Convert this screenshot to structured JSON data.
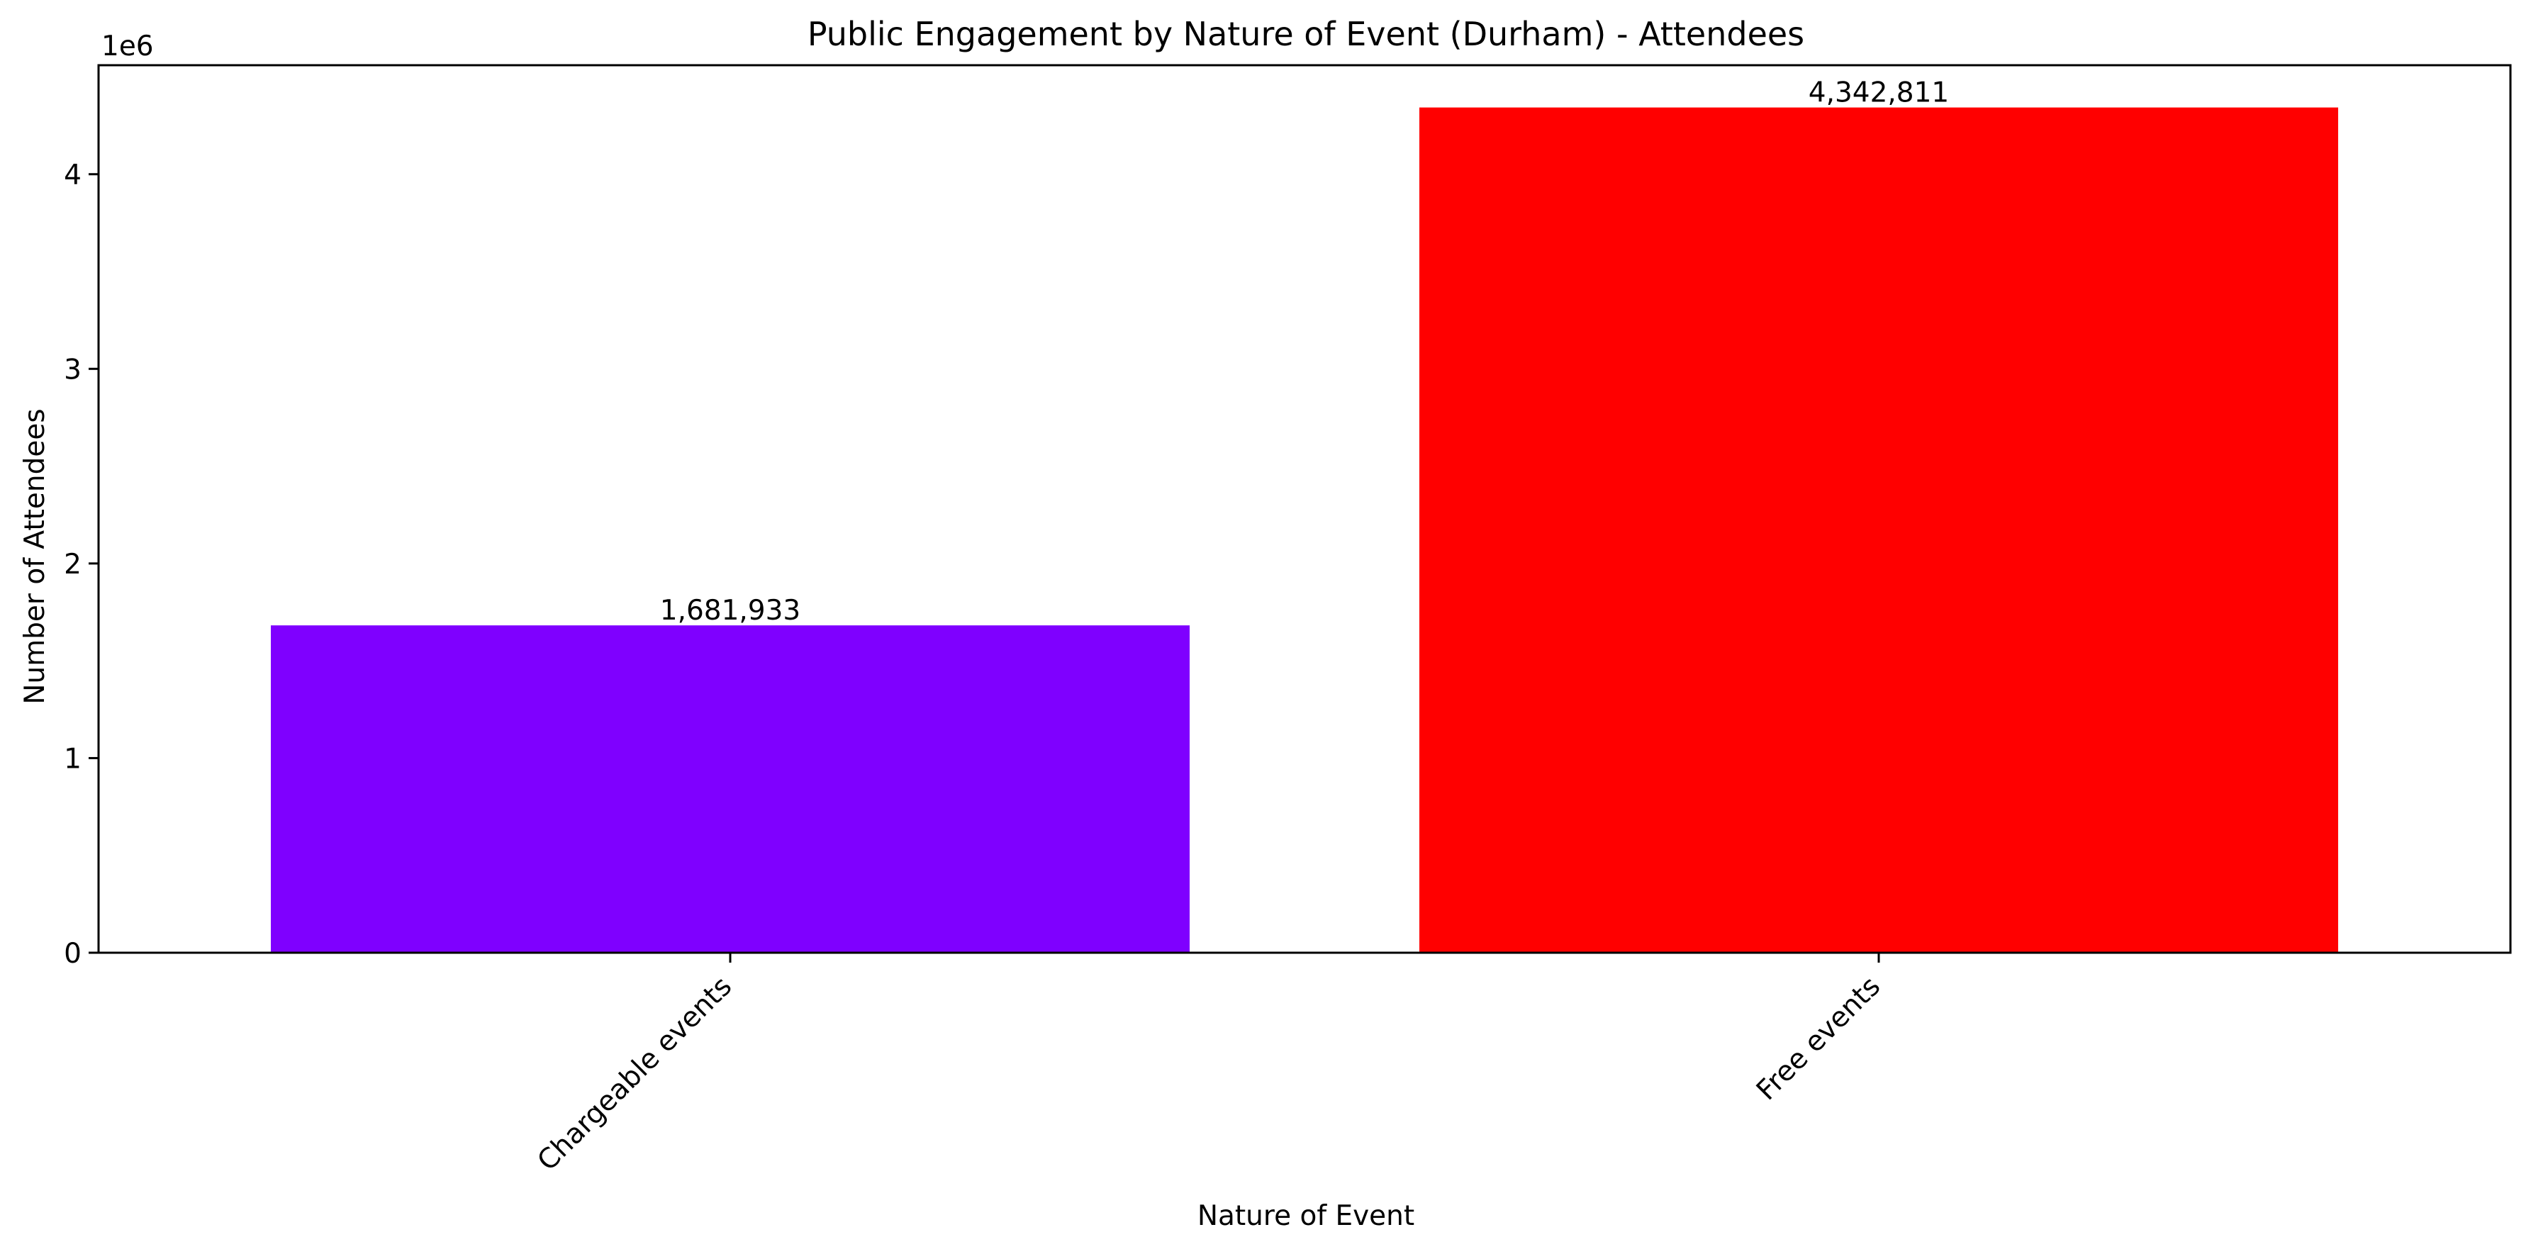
{
  "chart_data": {
    "type": "bar",
    "title": "Public Engagement by Nature of Event (Durham) - Attendees",
    "xlabel": "Nature of Event",
    "ylabel": "Number of Attendees",
    "y_offset_label": "1e6",
    "categories": [
      "Chargeable events",
      "Free events"
    ],
    "values": [
      1681933,
      4342811
    ],
    "value_labels": [
      "1,681,933",
      "4,342,811"
    ],
    "colors": [
      "#7f00ff",
      "#ff0000"
    ],
    "ylim": [
      0,
      4560000
    ],
    "yticks": [
      0,
      1000000,
      2000000,
      3000000,
      4000000
    ],
    "ytick_labels": [
      "0",
      "1",
      "2",
      "3",
      "4"
    ],
    "grid": false,
    "legend": "none"
  }
}
